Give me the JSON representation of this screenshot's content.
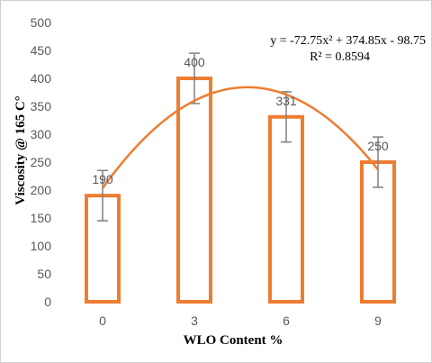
{
  "chart_data": {
    "type": "bar",
    "categories": [
      "0",
      "3",
      "6",
      "9"
    ],
    "values": [
      190,
      400,
      331,
      250
    ],
    "error_bars": [
      45,
      45,
      45,
      45
    ],
    "data_labels": [
      "190",
      "400",
      "331",
      "250"
    ],
    "xlabel": "WLO Content %",
    "ylabel": "Viscosity @ 165 C°",
    "ylim": [
      0,
      500
    ],
    "yticks": [
      "0",
      "50",
      "100",
      "150",
      "200",
      "250",
      "300",
      "350",
      "400",
      "450",
      "500"
    ],
    "grid": false,
    "legend": "none",
    "trendline": {
      "type": "polynomial",
      "coefficients": [
        -72.75,
        374.85,
        -98.75
      ],
      "equation_text": "y = -72.75x² + 374.85x - 98.75",
      "r2_text": "R² = 0.8594"
    },
    "colors": {
      "bar_outline": "#ED7D31",
      "bar_fill": "#FFFFFF",
      "trendline": "#ED7D31",
      "error_bar": "#808080",
      "text": "#595959"
    }
  }
}
